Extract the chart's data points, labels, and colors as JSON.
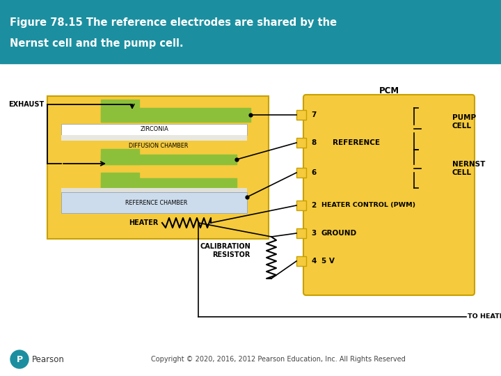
{
  "title_line1": "Figure 78.15 The reference electrodes are shared by the",
  "title_line2": "Nernst cell and the pump cell.",
  "title_bg": "#1b8fa0",
  "title_color": "#ffffff",
  "bg_color": "#ffffff",
  "yellow_fill": "#f5ca3c",
  "yellow_border": "#c8a000",
  "green_fill": "#8dc03a",
  "light_blue_fill": "#ccdcec",
  "white_fill": "#ffffff",
  "copyright": "Copyright © 2020, 2016, 2012 Pearson Education, Inc. All Rights Reserved",
  "teal_border": "#1b8fa0"
}
